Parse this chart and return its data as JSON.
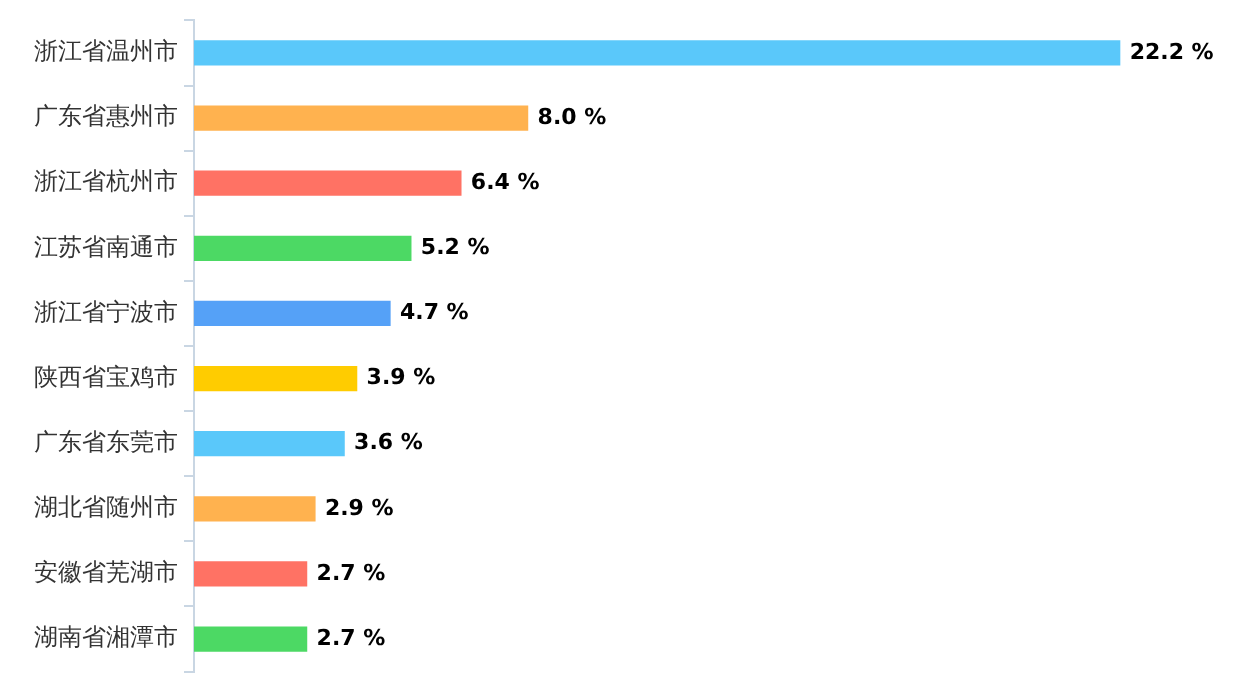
{
  "chart_data": {
    "type": "bar",
    "orientation": "horizontal",
    "categories": [
      "浙江省温州市",
      "广东省惠州市",
      "浙江省杭州市",
      "江苏省南通市",
      "浙江省宁波市",
      "陕西省宝鸡市",
      "广东省东莞市",
      "湖北省随州市",
      "安徽省芜湖市",
      "湖南省湘潭市"
    ],
    "values": [
      22.2,
      8.0,
      6.4,
      5.2,
      4.7,
      3.9,
      3.6,
      2.9,
      2.7,
      2.7
    ],
    "colors": [
      "#5ac8fa",
      "#ffb24f",
      "#ff7264",
      "#4cd964",
      "#55a1f7",
      "#ffcc00",
      "#5ac8fa",
      "#ffb24f",
      "#ff7264",
      "#4cd964"
    ],
    "value_labels": [
      "22.2 %",
      "8.0 %",
      "6.4 %",
      "5.2 %",
      "4.7 %",
      "3.9 %",
      "3.6 %",
      "2.9 %",
      "2.7 %",
      "2.7 %"
    ],
    "legend": false,
    "tick_labels": "y"
  }
}
